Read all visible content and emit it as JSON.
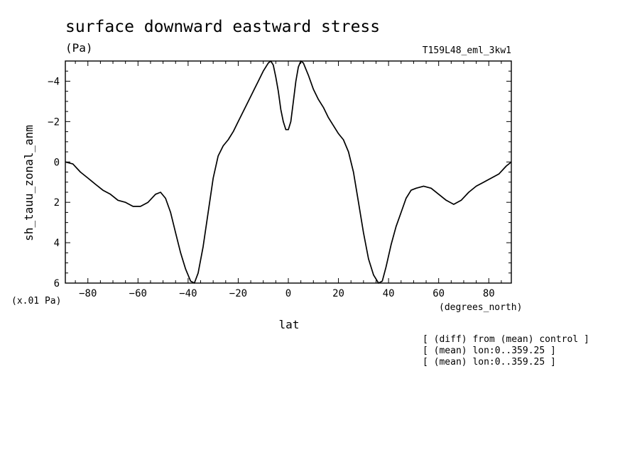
{
  "chart_data": {
    "type": "line",
    "title": "surface downward eastward stress",
    "units": "(Pa)",
    "experiment": "T159L48_eml_3kw1",
    "xlabel": "lat",
    "xunits": "(degrees_north)",
    "ylabel": "sh_tauu_zonal_anm",
    "yscale_note": "(x.01 Pa)",
    "xlim": [
      -89,
      89
    ],
    "ylim": [
      -5,
      6
    ],
    "y_inverted": true,
    "x_ticks": [
      -80,
      -60,
      -40,
      -20,
      0,
      20,
      40,
      60,
      80
    ],
    "y_ticks": [
      -4,
      -2,
      0,
      2,
      4,
      6
    ],
    "notes": [
      "[ (diff) from (mean) control ]",
      "[ (mean) lon:0..359.25 ]",
      "[ (mean) lon:0..359.25 ]"
    ],
    "series": [
      {
        "color": "#000000",
        "x": [
          -89,
          -86,
          -83,
          -80,
          -77,
          -74,
          -71,
          -68,
          -65,
          -62,
          -59,
          -56,
          -53,
          -51,
          -49,
          -47,
          -45,
          -43,
          -41,
          -39,
          -37.5,
          -36,
          -34,
          -32,
          -30,
          -28,
          -26,
          -24,
          -22,
          -20,
          -18,
          -16,
          -14,
          -12,
          -10,
          -8,
          -7,
          -6,
          -5,
          -4,
          -3,
          -2,
          -1,
          0,
          1,
          2,
          3,
          4,
          5,
          6,
          7,
          8,
          10,
          12,
          14,
          16,
          18,
          20,
          22,
          24,
          26,
          28,
          30,
          32,
          34,
          36,
          37.5,
          39,
          41,
          43,
          45,
          47,
          49,
          51,
          54,
          57,
          60,
          63,
          66,
          69,
          72,
          75,
          78,
          81,
          84,
          87,
          89
        ],
        "y": [
          0.0,
          0.1,
          0.5,
          0.8,
          1.1,
          1.4,
          1.6,
          1.9,
          2.0,
          2.2,
          2.2,
          2.0,
          1.6,
          1.5,
          1.8,
          2.5,
          3.5,
          4.5,
          5.3,
          5.9,
          6.0,
          5.5,
          4.2,
          2.5,
          0.8,
          -0.3,
          -0.8,
          -1.1,
          -1.5,
          -2.0,
          -2.5,
          -3.0,
          -3.5,
          -4.0,
          -4.5,
          -4.9,
          -5.0,
          -4.8,
          -4.2,
          -3.5,
          -2.6,
          -2.0,
          -1.6,
          -1.6,
          -2.0,
          -3.0,
          -4.0,
          -4.7,
          -5.0,
          -4.9,
          -4.6,
          -4.3,
          -3.6,
          -3.1,
          -2.7,
          -2.2,
          -1.8,
          -1.4,
          -1.1,
          -0.5,
          0.5,
          2.0,
          3.5,
          4.8,
          5.6,
          6.0,
          5.9,
          5.2,
          4.1,
          3.2,
          2.5,
          1.8,
          1.4,
          1.3,
          1.2,
          1.3,
          1.6,
          1.9,
          2.1,
          1.9,
          1.5,
          1.2,
          1.0,
          0.8,
          0.6,
          0.2,
          0.0
        ]
      }
    ]
  }
}
